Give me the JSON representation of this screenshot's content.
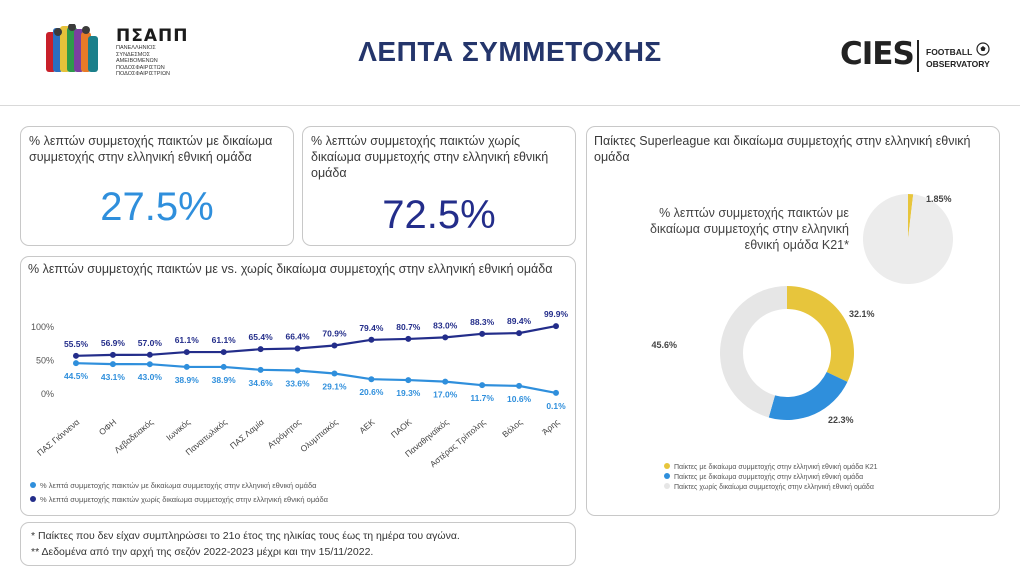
{
  "header": {
    "title": "ΛΕΠΤΑ ΣΥΜΜΕΤΟΧΗΣ",
    "left_logo_name": "ΠΣΑΠΠ",
    "left_logo_sub": [
      "ΠΑΝΕΛΛΗΝΙΟΣ",
      "ΣΥΝΔΕΣΜΟΣ",
      "ΑΜΕΙΒΟΜΕΝΩΝ",
      "ΠΟΔΟΣΦΑΙΡΙΣΤΩΝ",
      "ΠΟΔΟΣΦΑΙΡΙΣΤΡΙΩΝ"
    ],
    "right_logo_name": "CIES",
    "right_logo_sub": [
      "FOOTBALL",
      "OBSERVATORY"
    ]
  },
  "kpi_eligible": {
    "title": "% λεπτών συμμετοχής παικτών με δικαίωμα συμμετοχής στην ελληνική εθνική ομάδα",
    "value": "27.5%",
    "color": "#2f8fdc"
  },
  "kpi_not_eligible": {
    "title": "% λεπτών συμμετοχής παικτών χωρίς δικαίωμα συμμετοχής στην ελληνική εθνική ομάδα",
    "value": "72.5%",
    "color": "#232d8a"
  },
  "line_card": {
    "title": "% λεπτών συμμετοχής παικτών με vs. χωρίς δικαίωμα συμμετοχής στην ελληνική εθνική ομάδα"
  },
  "pie_card": {
    "title": "Παίκτες Superleague και δικαίωμα συμμετοχής στην ελληνική εθνική ομάδα",
    "small_pie_label": "% λεπτών συμμετοχής παικτών με δικαίωμα συμμετοχής στην ελληνική εθνική ομάδα K21*"
  },
  "footnotes": [
    "* Παίκτες που δεν είχαν συμπληρώσει το 21ο έτος της ηλικίας τους έως τη ημέρα του αγώνα.",
    "** Δεδομένα από την αρχή της σεζόν 2022-2023 μέχρι και την 15/11/2022."
  ],
  "chart_data": [
    {
      "type": "line",
      "categories": [
        "ΠΑΣ Γιάννενα",
        "ΟΦΗ",
        "Λεβαδειακός",
        "Ιωνικός",
        "Παναιτωλικός",
        "ΠΑΣ Λαμία",
        "Ατρόμητος",
        "Ολυμπιακός",
        "ΑΕΚ",
        "ΠΑΟΚ",
        "Παναθηναϊκός",
        "Αστέρας Τρίπολης",
        "Βόλος",
        "Άρης"
      ],
      "y_ticks": [
        "100%",
        "50%",
        "0%"
      ],
      "ylim": [
        0,
        100
      ],
      "series": [
        {
          "name": "% λεπτά συμμετοχής παικτών με δικαίωμα συμμετοχής στην ελληνική εθνική ομάδα",
          "values": [
            44.5,
            43.1,
            43.0,
            38.9,
            38.9,
            34.6,
            33.6,
            29.1,
            20.6,
            19.3,
            17.0,
            11.7,
            10.6,
            0.1
          ],
          "labels": [
            "44.5%",
            "43.1%",
            "43.0%",
            "38.9%",
            "38.9%",
            "34.6%",
            "33.6%",
            "29.1%",
            "20.6%",
            "19.3%",
            "17.0%",
            "11.7%",
            "10.6%",
            "0.1%"
          ],
          "color": "#2f8fdc"
        },
        {
          "name": "% λεπτά συμμετοχής παικτών χωρίς δικαίωμα συμμετοχής στην ελληνική εθνική ομάδα",
          "values": [
            55.5,
            56.9,
            57.0,
            61.1,
            61.1,
            65.4,
            66.4,
            70.9,
            79.4,
            80.7,
            83.0,
            88.3,
            89.4,
            99.9
          ],
          "labels": [
            "55.5%",
            "56.9%",
            "57.0%",
            "61.1%",
            "61.1%",
            "65.4%",
            "66.4%",
            "70.9%",
            "79.4%",
            "80.7%",
            "83.0%",
            "88.3%",
            "89.4%",
            "99.9%"
          ],
          "color": "#232d8a"
        }
      ],
      "legend": "bottom-left",
      "grid": false
    },
    {
      "type": "pie",
      "slices": [
        {
          "label": "",
          "value": 1.85,
          "value_label": "1.85%",
          "color": "#e7c53c"
        },
        {
          "label": "",
          "value": 98.15,
          "color": "#ececec"
        }
      ]
    },
    {
      "type": "pie",
      "donut": true,
      "slices": [
        {
          "label": "Παίκτες με δικαίωμα συμμετοχής στην ελληνική εθνική ομάδα K21",
          "value": 32.1,
          "value_label": "32.1%",
          "color": "#e7c53c"
        },
        {
          "label": "Παίκτες με δικαίωμα συμμετοχής στην ελληνική εθνική ομάδα",
          "value": 22.3,
          "value_label": "22.3%",
          "color": "#2f8fdc"
        },
        {
          "label": "Παίκτες χωρίς δικαίωμα συμμετοχής στην ελληνική εθνική ομάδα",
          "value": 45.6,
          "value_label": "45.6%",
          "color": "#e6e6e6"
        }
      ],
      "legend": "bottom-left"
    }
  ]
}
